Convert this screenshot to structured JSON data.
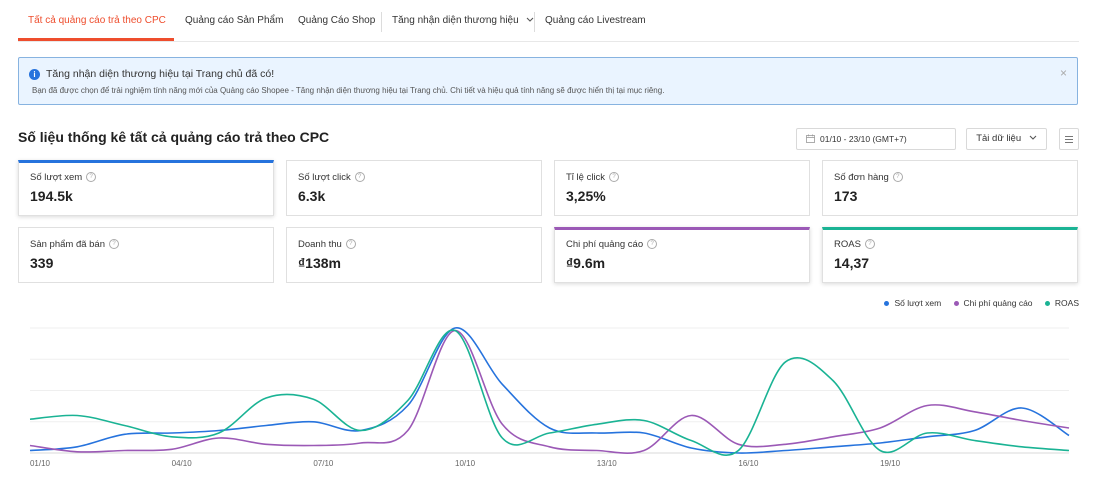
{
  "tabs": [
    {
      "label": "Tất cả quảng cáo trả theo CPC",
      "active": true
    },
    {
      "label": "Quảng cáo Sản Phẩm"
    },
    {
      "label": "Quảng Cáo Shop"
    },
    {
      "label": "Tăng nhận diện thương hiệu"
    },
    {
      "label": "Quảng cáo Livestream"
    }
  ],
  "notice": {
    "title": "Tăng nhận diện thương hiệu tại Trang chủ đã có!",
    "description": "Bạn đã được chọn để trải nghiệm tính năng mới của Quảng cáo Shopee - Tăng nhận diện thương hiệu tại Trang chủ. Chi tiết và hiệu quả tính năng sẽ được hiển thị tại mục riêng.",
    "close_symbol": "×",
    "info_symbol": "i"
  },
  "section_title": "Số liệu thống kê tất cả quảng cáo trả theo CPC",
  "date_range": "01/10 - 23/10 (GMT+7)",
  "download_label": "Tải dữ liệu",
  "metrics": [
    {
      "label": "Số lượt xem",
      "value": "194.5k",
      "selected": "blue"
    },
    {
      "label": "Số lượt click",
      "value": "6.3k"
    },
    {
      "label": "Tỉ lệ click",
      "value": "3,25%"
    },
    {
      "label": "Số đơn hàng",
      "value": "173"
    },
    {
      "label": "Sản phẩm đã bán",
      "value": "339"
    },
    {
      "label": "Doanh thu",
      "value": "₫138m"
    },
    {
      "label": "Chi phí quảng cáo",
      "value": "₫9.6m",
      "selected": "purple"
    },
    {
      "label": "ROAS",
      "value": "14,37",
      "selected": "teal"
    }
  ],
  "help_symbol": "?",
  "colors": {
    "accent": "#ee4d2d",
    "blue": "#2673dd",
    "purple": "#9b59b6",
    "teal": "#1ab394"
  },
  "chart_data": {
    "type": "line",
    "x": [
      "01/10",
      "02/10",
      "03/10",
      "04/10",
      "05/10",
      "06/10",
      "07/10",
      "08/10",
      "09/10",
      "10/10",
      "11/10",
      "12/10",
      "13/10",
      "14/10",
      "15/10",
      "16/10",
      "17/10",
      "18/10",
      "19/10",
      "20/10",
      "21/10",
      "22/10",
      "23/10"
    ],
    "x_tick_labels": [
      "01/10",
      "04/10",
      "07/10",
      "10/10",
      "13/10",
      "16/10",
      "19/10"
    ],
    "legend": [
      "Số lượt xem",
      "Chi phí quảng cáo",
      "ROAS"
    ],
    "legend_position": "top-right",
    "grid": true,
    "y_axis_labels_shown": false,
    "normalized": true,
    "ylim": [
      0,
      1
    ],
    "series": [
      {
        "name": "Số lượt xem",
        "color": "#2673dd",
        "values": [
          0.02,
          0.05,
          0.15,
          0.16,
          0.18,
          0.22,
          0.25,
          0.18,
          0.38,
          1.0,
          0.55,
          0.2,
          0.16,
          0.16,
          0.04,
          0.0,
          0.02,
          0.05,
          0.08,
          0.13,
          0.18,
          0.36,
          0.14
        ]
      },
      {
        "name": "Chi phí quảng cáo",
        "color": "#9b59b6",
        "values": [
          0.06,
          0.01,
          0.02,
          0.03,
          0.12,
          0.07,
          0.06,
          0.08,
          0.18,
          0.98,
          0.23,
          0.05,
          0.02,
          0.02,
          0.3,
          0.07,
          0.07,
          0.13,
          0.2,
          0.38,
          0.33,
          0.26,
          0.2
        ]
      },
      {
        "name": "ROAS",
        "color": "#1ab394",
        "values": [
          0.27,
          0.3,
          0.22,
          0.13,
          0.16,
          0.44,
          0.43,
          0.18,
          0.42,
          0.98,
          0.12,
          0.16,
          0.23,
          0.26,
          0.1,
          0.02,
          0.73,
          0.58,
          0.02,
          0.16,
          0.1,
          0.05,
          0.02
        ]
      }
    ]
  }
}
